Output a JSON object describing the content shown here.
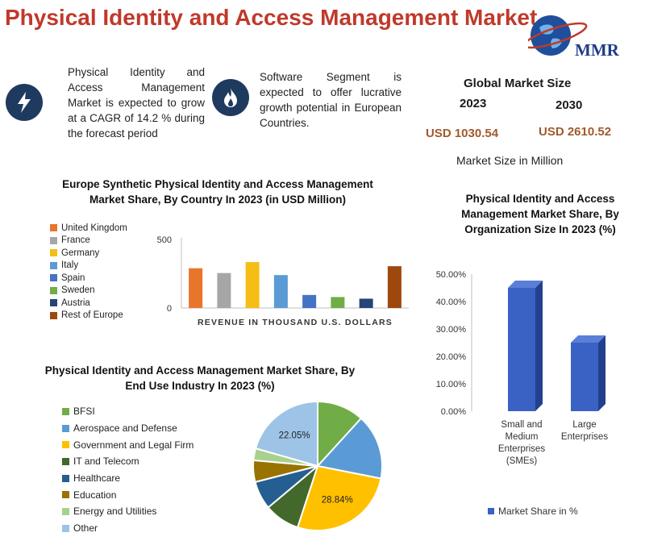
{
  "header": {
    "title": "Physical Identity and Access Management Market",
    "logo_text": "MMR"
  },
  "intro": {
    "growth": "Physical Identity and Access Management Market is expected to grow at a CAGR of 14.2 % during the forecast period",
    "segment": "Software Segment is expected to offer lucrative growth potential in European Countries."
  },
  "icons": {
    "growth": "lightning-icon",
    "segment": "flame-icon"
  },
  "kpi": {
    "title": "Global Market Size",
    "year_a": "2023",
    "year_b": "2030",
    "value_a": "USD 1030.54",
    "value_b": "USD 2610.52",
    "caption": "Market Size in Million"
  },
  "colors": {
    "title_red": "#c0392b",
    "value_brown": "#a05a2c",
    "bar_blue": "#3a62c4"
  },
  "chart_data": [
    {
      "type": "bar",
      "title": "Europe Synthetic Physical Identity and Access Management Market Share, By Country In 2023 (in USD Million)",
      "xlabel": "REVENUE IN THOUSAND U.S. DOLLARS",
      "ylabel": "",
      "ylim": [
        0,
        500
      ],
      "yticks": [
        "0",
        "500"
      ],
      "legend_position": "left",
      "categories": [
        "United Kingdom",
        "France",
        "Germany",
        "Italy",
        "Spain",
        "Sweden",
        "Austria",
        "Rest of Europe"
      ],
      "values": [
        290,
        255,
        335,
        240,
        95,
        80,
        68,
        305
      ],
      "colors": [
        "#e8752c",
        "#a6a6a6",
        "#f5be14",
        "#5b9bd5",
        "#4472c4",
        "#70ad47",
        "#264478",
        "#9e480e"
      ]
    },
    {
      "type": "pie",
      "title": "Physical Identity and Access Management Market Share, By End Use Industry In 2023 (%)",
      "legend_position": "left",
      "categories": [
        "BFSI",
        "Aerospace and Defense",
        "Government and Legal Firm",
        "IT and Telecom",
        "Healthcare",
        "Education",
        "Energy and Utilities",
        "Other"
      ],
      "values": [
        12.6,
        17.5,
        28.84,
        9.5,
        7.6,
        5.8,
        3.2,
        22.05
      ],
      "labels": [
        "",
        "",
        "28.84%",
        "",
        "",
        "",
        "",
        "22.05%"
      ],
      "colors": [
        "#70ad47",
        "#5b9bd5",
        "#ffc000",
        "#43682b",
        "#255e91",
        "#997300",
        "#a9d18e",
        "#9dc3e6"
      ]
    },
    {
      "type": "bar",
      "title": "Physical Identity and Access Management Market Share, By Organization Size In 2023 (%)",
      "xlabel": "",
      "ylabel": "",
      "ylim": [
        0,
        50
      ],
      "yticks": [
        "0.00%",
        "10.00%",
        "20.00%",
        "30.00%",
        "40.00%",
        "50.00%"
      ],
      "grid": false,
      "legend_position": "bottom",
      "categories": [
        "Small and Medium Enterprises (SMEs)",
        "Large Enterprises"
      ],
      "category_lines": [
        [
          "Small and",
          "Medium",
          "Enterprises",
          "(SMEs)"
        ],
        [
          "Large",
          "Enterprises"
        ]
      ],
      "series": [
        {
          "name": "Market Share in %",
          "values": [
            45,
            25
          ]
        }
      ]
    }
  ]
}
